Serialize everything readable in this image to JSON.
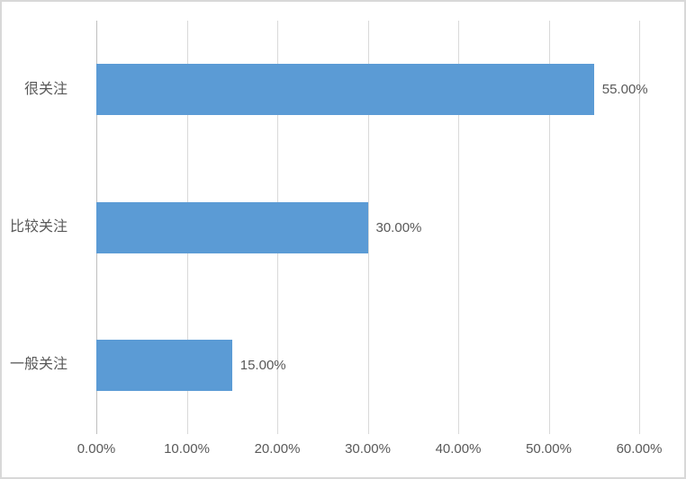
{
  "chart_data": {
    "type": "bar",
    "orientation": "horizontal",
    "title": "",
    "xlabel": "",
    "ylabel": "",
    "categories": [
      "很关注",
      "比较关注",
      "一般关注"
    ],
    "values": [
      55,
      30,
      15
    ],
    "value_labels": [
      "55.00%",
      "30.00%",
      "15.00%"
    ],
    "x_ticks": [
      "0.00%",
      "10.00%",
      "20.00%",
      "30.00%",
      "40.00%",
      "50.00%",
      "60.00%"
    ],
    "x_tick_values": [
      0,
      10,
      20,
      30,
      40,
      50,
      60
    ],
    "xlim": [
      0,
      60
    ],
    "grid": true,
    "legend": "none",
    "bar_color": "#5b9bd5",
    "gridline_color": "#d9d9d9",
    "axis_line_color": "#bfbfbf",
    "text_color": "#595959",
    "frame_border_color": "#d8d8d8",
    "background_color": "#ffffff"
  }
}
